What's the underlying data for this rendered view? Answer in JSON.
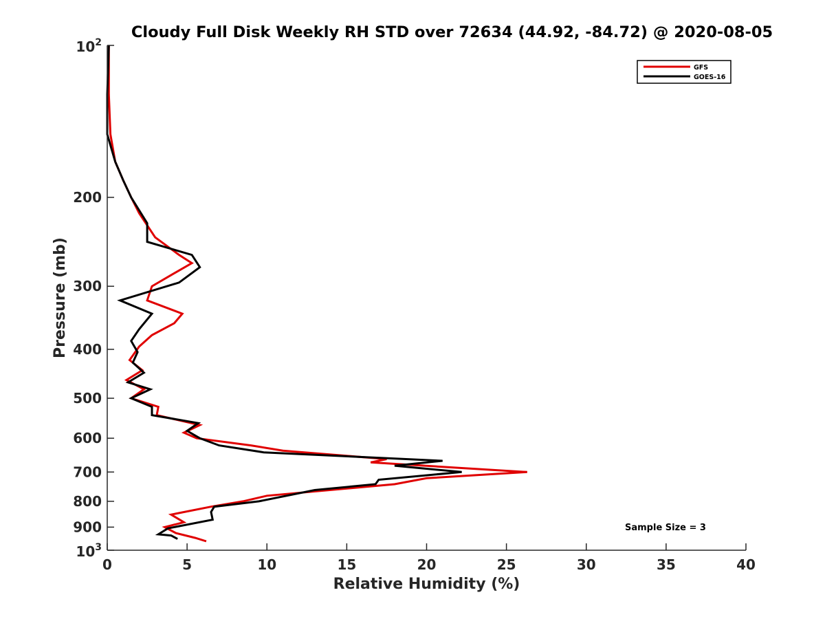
{
  "chart_data": {
    "type": "line",
    "title": "Cloudy Full Disk Weekly RH STD over 72634 (44.92, -84.72) @ 2020-08-05",
    "xlabel": "Relative Humidity (%)",
    "ylabel": "Pressure (mb)",
    "xlim": [
      0,
      40
    ],
    "ylim": [
      100,
      1000
    ],
    "y_scale": "log",
    "y_reversed": true,
    "grid": false,
    "legend_position": "top-right",
    "x_ticks": [
      "0",
      "5",
      "10",
      "15",
      "20",
      "25",
      "30",
      "35",
      "40"
    ],
    "y_ticks": [
      {
        "value": 100,
        "base": "10",
        "exp": "2"
      },
      {
        "value": 200,
        "label": "200"
      },
      {
        "value": 300,
        "label": "300"
      },
      {
        "value": 400,
        "label": "400"
      },
      {
        "value": 500,
        "label": "500"
      },
      {
        "value": 600,
        "label": "600"
      },
      {
        "value": 700,
        "label": "700"
      },
      {
        "value": 800,
        "label": "800"
      },
      {
        "value": 900,
        "label": "900"
      },
      {
        "value": 1000,
        "base": "10",
        "exp": "3"
      }
    ],
    "annotation": "Sample Size = 3",
    "series": [
      {
        "name": "GFS",
        "color": "#e00000",
        "points": [
          [
            0.1,
            100
          ],
          [
            0.1,
            125
          ],
          [
            0.2,
            150
          ],
          [
            0.5,
            170
          ],
          [
            1.0,
            185
          ],
          [
            1.5,
            200
          ],
          [
            2.0,
            215
          ],
          [
            3.0,
            240
          ],
          [
            4.5,
            260
          ],
          [
            5.3,
            270
          ],
          [
            4.0,
            285
          ],
          [
            2.8,
            300
          ],
          [
            2.5,
            320
          ],
          [
            4.7,
            340
          ],
          [
            4.2,
            355
          ],
          [
            2.8,
            375
          ],
          [
            2.0,
            395
          ],
          [
            1.4,
            420
          ],
          [
            2.2,
            440
          ],
          [
            1.2,
            460
          ],
          [
            2.3,
            480
          ],
          [
            1.5,
            500
          ],
          [
            3.2,
            520
          ],
          [
            3.1,
            540
          ],
          [
            5.8,
            565
          ],
          [
            4.8,
            585
          ],
          [
            5.6,
            600
          ],
          [
            9.0,
            620
          ],
          [
            11.0,
            635
          ],
          [
            17.5,
            660
          ],
          [
            16.5,
            670
          ],
          [
            26.3,
            700
          ],
          [
            20.0,
            720
          ],
          [
            18.0,
            740
          ],
          [
            10.0,
            780
          ],
          [
            8.5,
            800
          ],
          [
            6.5,
            820
          ],
          [
            4.0,
            850
          ],
          [
            4.8,
            880
          ],
          [
            3.6,
            900
          ],
          [
            4.3,
            925
          ],
          [
            5.5,
            945
          ],
          [
            6.2,
            960
          ]
        ]
      },
      {
        "name": "GOES-16",
        "color": "#000000",
        "points": [
          [
            0.1,
            100
          ],
          [
            0.0,
            125
          ],
          [
            0.0,
            150
          ],
          [
            0.5,
            170
          ],
          [
            1.0,
            185
          ],
          [
            1.5,
            200
          ],
          [
            2.5,
            225
          ],
          [
            2.5,
            245
          ],
          [
            5.3,
            260
          ],
          [
            5.8,
            275
          ],
          [
            4.5,
            295
          ],
          [
            0.8,
            320
          ],
          [
            2.8,
            340
          ],
          [
            2.0,
            365
          ],
          [
            1.5,
            385
          ],
          [
            1.9,
            405
          ],
          [
            1.6,
            425
          ],
          [
            2.3,
            445
          ],
          [
            1.3,
            465
          ],
          [
            2.7,
            480
          ],
          [
            1.5,
            500
          ],
          [
            2.8,
            520
          ],
          [
            2.8,
            540
          ],
          [
            5.7,
            560
          ],
          [
            5.0,
            580
          ],
          [
            5.8,
            600
          ],
          [
            7.0,
            620
          ],
          [
            9.8,
            640
          ],
          [
            21.0,
            665
          ],
          [
            18.0,
            680
          ],
          [
            22.2,
            700
          ],
          [
            17.0,
            725
          ],
          [
            16.8,
            740
          ],
          [
            13.0,
            760
          ],
          [
            9.5,
            800
          ],
          [
            6.7,
            820
          ],
          [
            6.5,
            840
          ],
          [
            6.6,
            870
          ],
          [
            3.8,
            905
          ],
          [
            3.2,
            930
          ],
          [
            4.0,
            935
          ],
          [
            4.4,
            950
          ]
        ]
      }
    ]
  }
}
